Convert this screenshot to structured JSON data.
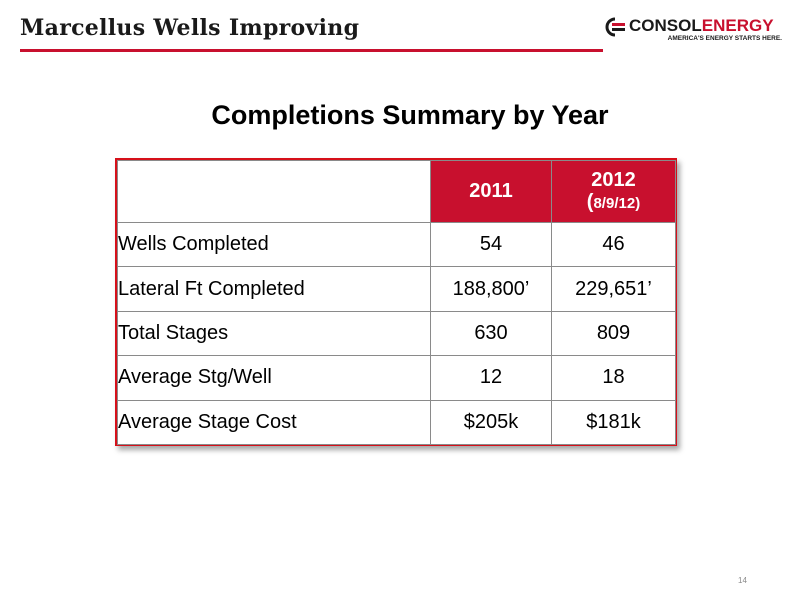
{
  "slide": {
    "title": "Marcellus Wells Improving",
    "page_number": "14"
  },
  "logo": {
    "name_part1": "CONSOL",
    "name_part2": "ENERGY",
    "tagline": "AMERICA'S ENERGY STARTS HERE.",
    "icon": "consol-logo-icon",
    "colors": {
      "dark": "#1a1a1a",
      "red": "#c8102e"
    }
  },
  "table": {
    "heading": "Completions Summary by Year",
    "columns": [
      {
        "year": "2011",
        "note": ""
      },
      {
        "year": "2012",
        "note_open": "(",
        "note": "8/9/12",
        "note_close": ")"
      }
    ],
    "rows": [
      {
        "label": "Wells Completed",
        "values": [
          "54",
          "46"
        ]
      },
      {
        "label": "Lateral Ft Completed",
        "values": [
          "188,800’",
          "229,651’"
        ]
      },
      {
        "label": "Total Stages",
        "values": [
          "630",
          "809"
        ]
      },
      {
        "label": "Average Stg/Well",
        "values": [
          "12",
          "18"
        ]
      },
      {
        "label": "Average Stage Cost",
        "values": [
          "$205k",
          "$181k"
        ]
      }
    ],
    "colors": {
      "header_fill": "#c8102e",
      "border": "#d6101a"
    }
  }
}
